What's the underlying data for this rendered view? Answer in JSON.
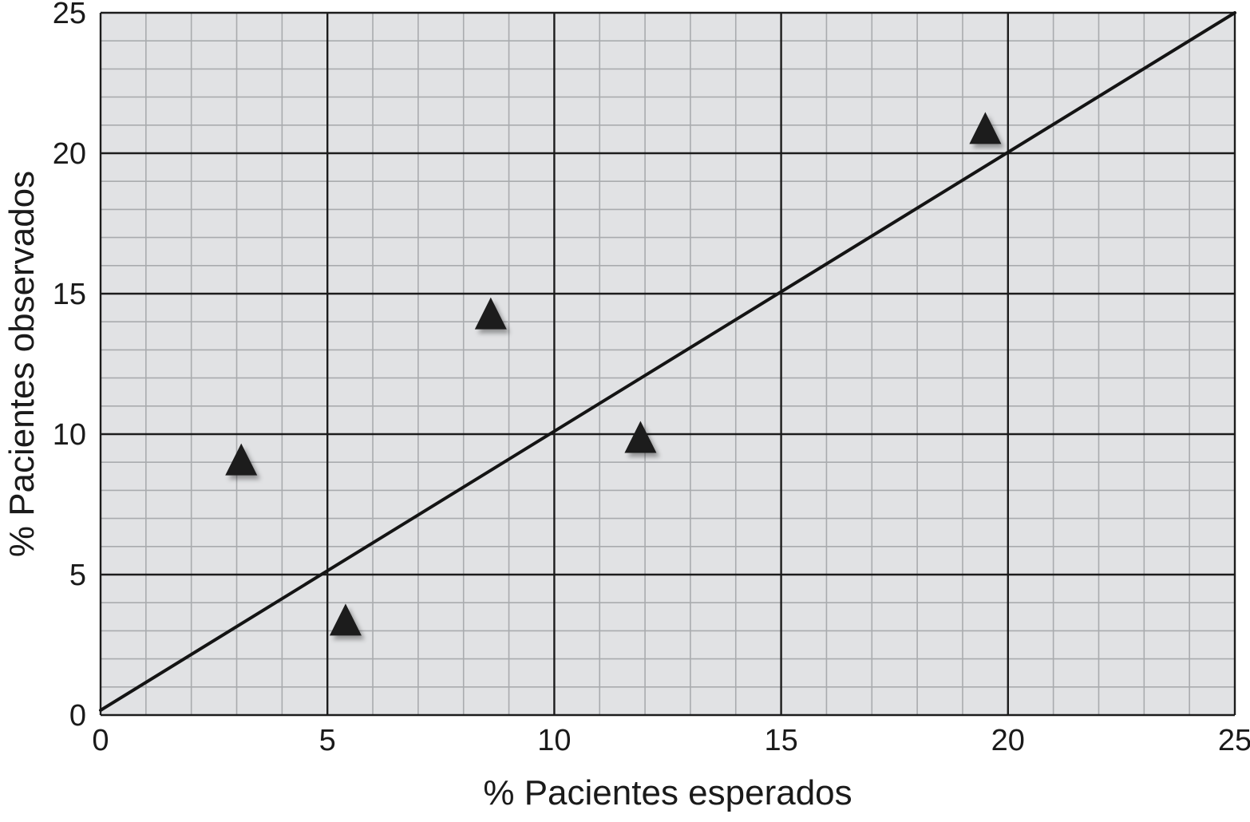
{
  "chart_data": {
    "type": "scatter",
    "title": "",
    "xlabel": "% Pacientes esperados",
    "ylabel": "% Pacientes observados",
    "xlim": [
      0,
      25
    ],
    "ylim": [
      0,
      25
    ],
    "x_ticks": [
      "0",
      "5",
      "10",
      "15",
      "20",
      "25"
    ],
    "y_ticks": [
      "0",
      "5",
      "10",
      "15",
      "20",
      "25"
    ],
    "grid": "major every 5, minor every 1",
    "legend": "none",
    "background_color": "#e1e2e4",
    "marker": "triangle",
    "marker_color": "#1a1a1a",
    "points": [
      {
        "x": 3.1,
        "y": 9.1
      },
      {
        "x": 5.4,
        "y": 3.4
      },
      {
        "x": 8.6,
        "y": 14.3
      },
      {
        "x": 11.9,
        "y": 9.9
      },
      {
        "x": 19.5,
        "y": 20.9
      }
    ],
    "reference_line": {
      "x": [
        0,
        25
      ],
      "y": [
        0,
        25
      ]
    }
  }
}
